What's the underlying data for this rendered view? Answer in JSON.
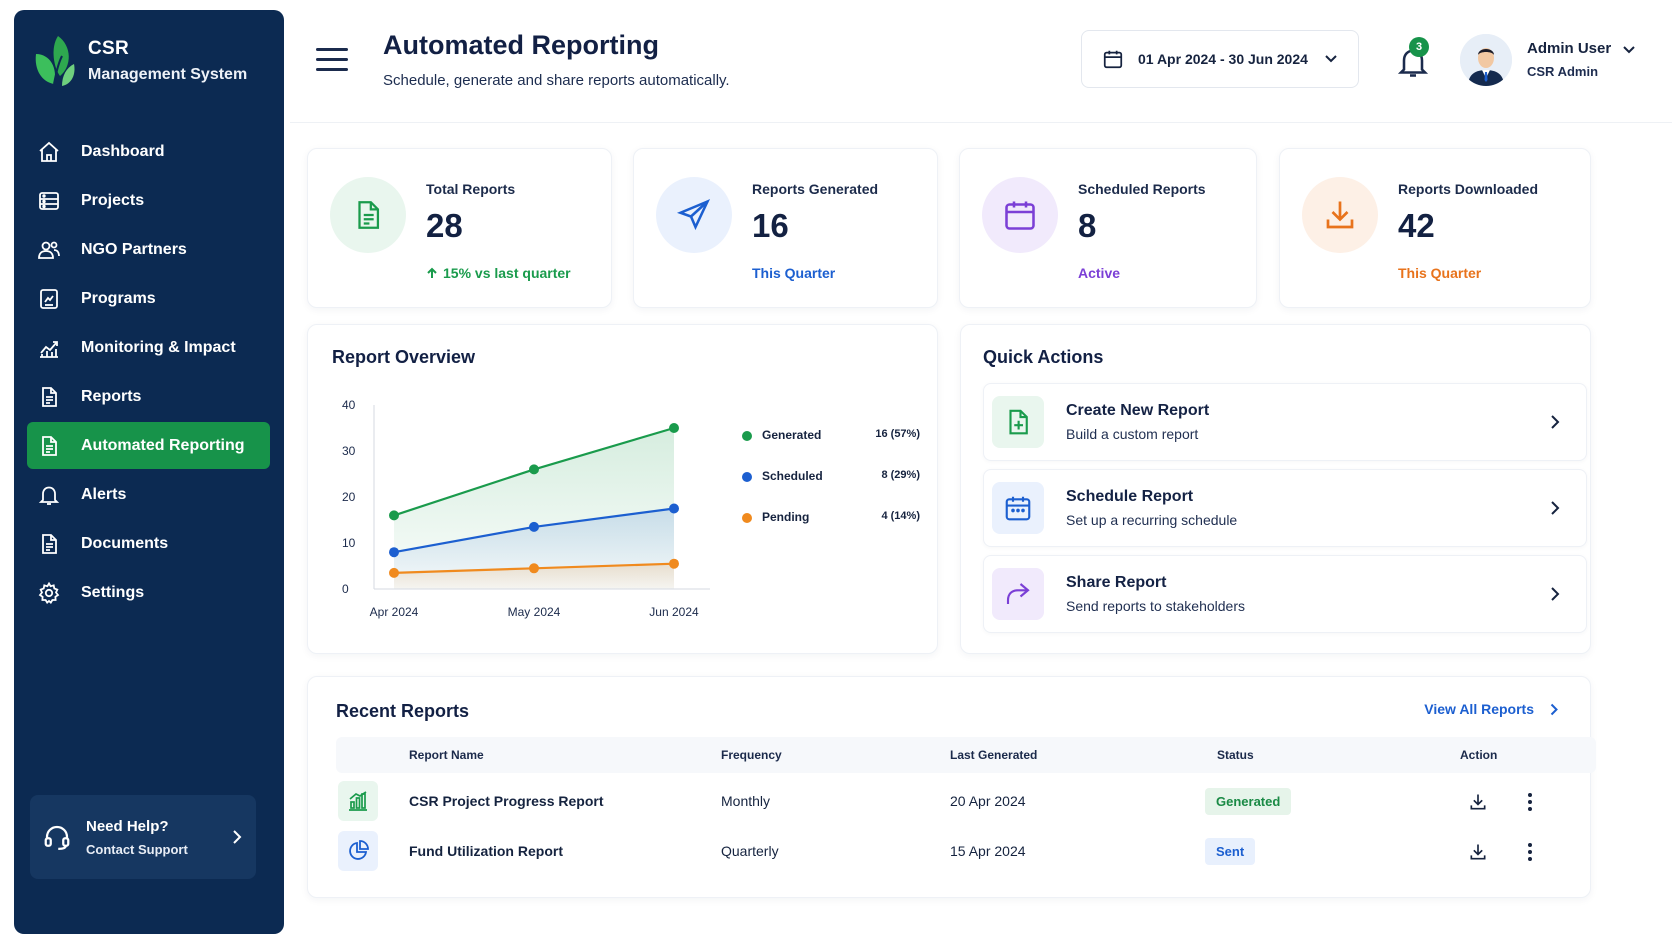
{
  "sidebar": {
    "brand_title": "CSR",
    "brand_subtitle": "Management System",
    "items": [
      {
        "label": "Dashboard",
        "icon": "home-icon"
      },
      {
        "label": "Projects",
        "icon": "projects-icon"
      },
      {
        "label": "NGO Partners",
        "icon": "users-icon"
      },
      {
        "label": "Programs",
        "icon": "programs-icon"
      },
      {
        "label": "Monitoring & Impact",
        "icon": "chart-icon"
      },
      {
        "label": "Reports",
        "icon": "document-icon"
      },
      {
        "label": "Automated Reporting",
        "icon": "automated-document-icon",
        "active": true
      },
      {
        "label": "Alerts",
        "icon": "bell-icon"
      },
      {
        "label": "Documents",
        "icon": "document-icon"
      },
      {
        "label": "Settings",
        "icon": "gear-icon"
      }
    ],
    "help": {
      "title": "Need Help?",
      "subtitle": "Contact Support"
    }
  },
  "header": {
    "title": "Automated Reporting",
    "subtitle": "Schedule, generate and share reports automatically.",
    "date_range": "01 Apr 2024 - 30 Jun 2024",
    "notification_count": "3",
    "user_name": "Admin User",
    "user_role": "CSR Admin"
  },
  "stats": [
    {
      "label": "Total Reports",
      "value": "28",
      "note": "15% vs last quarter",
      "color": "#1a9b4c",
      "bg": "#e9f6ee"
    },
    {
      "label": "Reports Generated",
      "value": "16",
      "note": "This Quarter",
      "color": "#1c5fd0",
      "bg": "#eaf1fd"
    },
    {
      "label": "Scheduled Reports",
      "value": "8",
      "note": "Active",
      "color": "#7b3fd6",
      "bg": "#f1eafc"
    },
    {
      "label": "Reports Downloaded",
      "value": "42",
      "note": "This Quarter",
      "color": "#e8731c",
      "bg": "#fdf0e6"
    }
  ],
  "overview": {
    "title": "Report Overview",
    "legend": [
      {
        "label": "Generated",
        "value": "16 (57%)"
      },
      {
        "label": "Scheduled",
        "value": "8 (29%)"
      },
      {
        "label": "Pending",
        "value": "4 (14%)"
      }
    ]
  },
  "chart_data": {
    "type": "line",
    "x": [
      "Apr 2024",
      "May 2024",
      "Jun 2024"
    ],
    "yticks": [
      "0",
      "10",
      "20",
      "30",
      "40"
    ],
    "ylim": [
      0,
      40
    ],
    "series": [
      {
        "name": "Generated",
        "values": [
          16,
          26,
          35
        ],
        "color": "#1a9b4c"
      },
      {
        "name": "Scheduled",
        "values": [
          8,
          13.5,
          17.5
        ],
        "color": "#1c5fd0"
      },
      {
        "name": "Pending",
        "values": [
          3.5,
          4.5,
          5.5
        ],
        "color": "#f08a1e"
      }
    ],
    "legend_position": "right",
    "grid": false
  },
  "quick_actions": {
    "title": "Quick Actions",
    "items": [
      {
        "title": "Create New Report",
        "subtitle": "Build a custom report",
        "color": "#1a9b4c",
        "bg": "#e9f6ee"
      },
      {
        "title": "Schedule Report",
        "subtitle": "Set up a recurring schedule",
        "color": "#1c5fd0",
        "bg": "#eaf1fd"
      },
      {
        "title": "Share Report",
        "subtitle": "Send reports to stakeholders",
        "color": "#7b3fd6",
        "bg": "#f1eafc"
      }
    ]
  },
  "recent": {
    "title": "Recent Reports",
    "view_all": "View All Reports",
    "columns": [
      "Report Name",
      "Frequency",
      "Last Generated",
      "Status",
      "Action"
    ],
    "rows": [
      {
        "name": "CSR Project Progress Report",
        "frequency": "Monthly",
        "last_generated": "20 Apr 2024",
        "status": "Generated",
        "status_color": "#1a8a45",
        "status_bg": "#e6f4ea",
        "icon": "bar-chart-icon"
      },
      {
        "name": "Fund Utilization Report",
        "frequency": "Quarterly",
        "last_generated": "15 Apr 2024",
        "status": "Sent",
        "status_color": "#1c5fd0",
        "status_bg": "#e8f0fd",
        "icon": "pie-chart-icon"
      }
    ]
  }
}
